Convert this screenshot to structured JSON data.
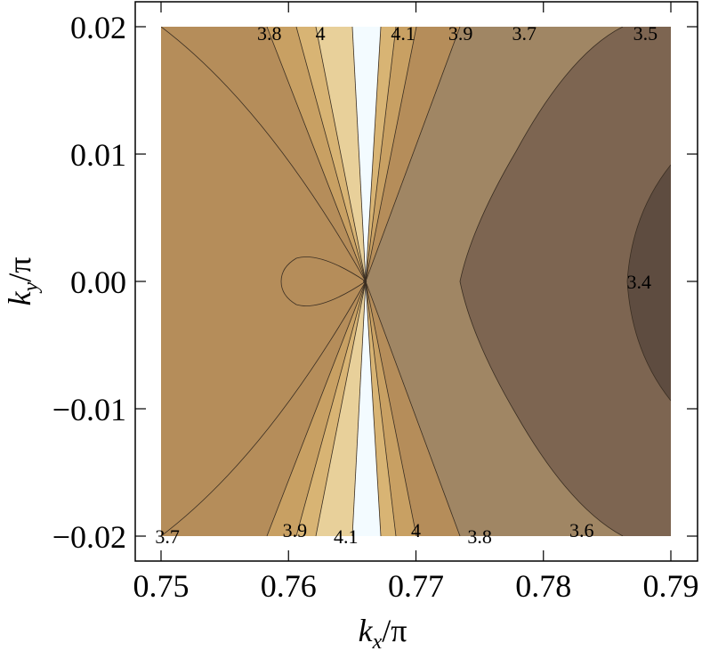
{
  "chart_data": {
    "type": "contour",
    "title": "",
    "xlabel": "k_x/π",
    "ylabel": "k_y/π",
    "xlabel_main": "k",
    "xlabel_sub": "x",
    "xlabel_tail": "/π",
    "ylabel_main": "k",
    "ylabel_sub": "y",
    "ylabel_tail": "/π",
    "xlim": [
      0.75,
      0.79
    ],
    "ylim": [
      -0.02,
      0.02
    ],
    "x_ticks": [
      0.75,
      0.76,
      0.77,
      0.78,
      0.79
    ],
    "x_tick_labels": [
      "0.75",
      "0.76",
      "0.77",
      "0.78",
      "0.79"
    ],
    "y_ticks": [
      0.02,
      0.01,
      0.0,
      -0.01,
      -0.02
    ],
    "y_tick_labels": [
      "0.02",
      "0.01",
      "0.00",
      "−0.01",
      "−0.02"
    ],
    "saddle_point": [
      0.766,
      0.0
    ],
    "contour_levels": [
      3.4,
      3.5,
      3.6,
      3.7,
      3.8,
      3.9,
      4.0,
      4.1
    ],
    "contour_labels": [
      {
        "text": "3.8",
        "x": 0.7585,
        "y": 0.0195
      },
      {
        "text": "4",
        "x": 0.7625,
        "y": 0.0195
      },
      {
        "text": "4.1",
        "x": 0.769,
        "y": 0.0195
      },
      {
        "text": "3.9",
        "x": 0.7735,
        "y": 0.0195
      },
      {
        "text": "3.7",
        "x": 0.7785,
        "y": 0.0195
      },
      {
        "text": "3.5",
        "x": 0.788,
        "y": 0.0195
      },
      {
        "text": "3.4",
        "x": 0.7875,
        "y": 0.0
      },
      {
        "text": "3.7",
        "x": 0.7505,
        "y": -0.02
      },
      {
        "text": "3.9",
        "x": 0.7605,
        "y": -0.0195
      },
      {
        "text": "4.1",
        "x": 0.7645,
        "y": -0.02
      },
      {
        "text": "4",
        "x": 0.77,
        "y": -0.0195
      },
      {
        "text": "3.8",
        "x": 0.775,
        "y": -0.02
      },
      {
        "text": "3.6",
        "x": 0.783,
        "y": -0.0195
      }
    ],
    "colors": {
      "level_3_4": "#5e4c40",
      "level_3_5": "#7d6551",
      "level_3_6": "#a08664",
      "level_3_7": "#b58d5a",
      "level_3_8": "#c8a063",
      "level_3_9": "#d8b474",
      "level_4_0": "#e8d09a",
      "level_4_1": "#ffffff",
      "center": "#f3fbff"
    }
  }
}
